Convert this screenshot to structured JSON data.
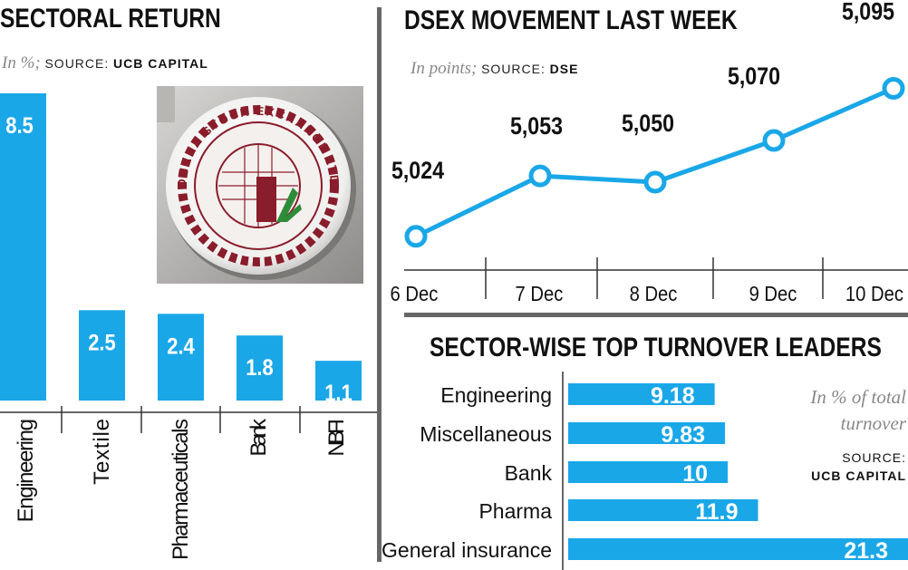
{
  "sectoral": {
    "title": "SECTORAL RETURN",
    "unit": "In %;",
    "source_label": "SOURCE:",
    "source_name": "UCB CAPITAL"
  },
  "dsex": {
    "title": "DSEX MOVEMENT LAST WEEK",
    "unit": "In points;",
    "source_label": "SOURCE:",
    "source_name": "DSE"
  },
  "turnover": {
    "title": "SECTOR-WISE TOP TURNOVER LEADERS",
    "note_line1": "In % of total",
    "note_line2": "turnover",
    "source_label": "SOURCE:",
    "source_name": "UCB CAPITAL"
  },
  "colors": {
    "bar": "#1aa7e8",
    "line": "#1aa7e8",
    "divider": "#666666"
  },
  "photo": {
    "icon": "dhaka-stock-exchange-logo",
    "ring_text": "DHAKA STOCK EXCHANGE LTD."
  },
  "chart_data": [
    {
      "type": "bar",
      "title": "SECTORAL RETURN",
      "categories": [
        "Engineering",
        "Textile",
        "Pharmaceuticals",
        "Bank",
        "NBFI"
      ],
      "values": [
        8.5,
        2.5,
        2.4,
        1.8,
        1.1
      ],
      "value_labels": [
        "8.5",
        "2.5",
        "2.4",
        "1.8",
        "1.1"
      ],
      "ylim": [
        0,
        9.1
      ],
      "grid": false
    },
    {
      "type": "line",
      "title": "DSEX MOVEMENT LAST WEEK",
      "x": [
        "6 Dec",
        "7 Dec",
        "8 Dec",
        "9 Dec",
        "10 Dec"
      ],
      "values": [
        5024,
        5053,
        5050,
        5070,
        5095
      ],
      "value_labels": [
        "5,024",
        "5,053",
        "5,050",
        "5,070",
        "5,095"
      ],
      "ylim": [
        5020,
        5100
      ],
      "grid": false
    },
    {
      "type": "bar",
      "orientation": "horizontal",
      "title": "SECTOR-WISE TOP TURNOVER LEADERS",
      "categories": [
        "Engineering",
        "Miscellaneous",
        "Bank",
        "Pharma",
        "General insurance"
      ],
      "values": [
        9.18,
        9.83,
        10,
        11.9,
        21.3
      ],
      "value_labels": [
        "9.18",
        "9.83",
        "10",
        "11.9",
        "21.3"
      ],
      "xlim": [
        0,
        21.3
      ],
      "grid": false
    }
  ]
}
